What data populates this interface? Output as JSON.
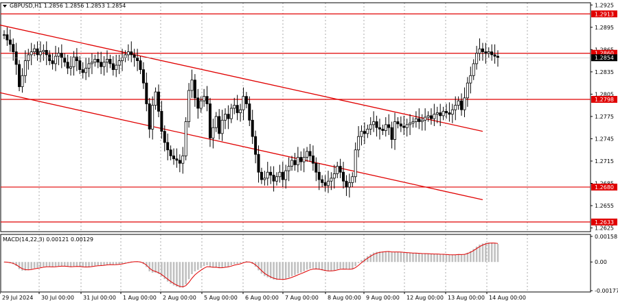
{
  "header": {
    "symbol": "GBPUSD,H1",
    "ohlc": "1.2856 1.2856 1.2853 1.2854"
  },
  "chart_data": {
    "type": "candlestick",
    "price_axis": {
      "range": [
        1.262,
        1.2928
      ],
      "ticks": [
        "1.2925",
        "1.2895",
        "1.2865",
        "1.2835",
        "1.2805",
        "1.2775",
        "1.2745",
        "1.2715",
        "1.2685",
        "1.2655",
        "1.2625"
      ]
    },
    "levels": [
      {
        "label": "1.2913",
        "value": 1.2913
      },
      {
        "label": "1.2860",
        "value": 1.286
      },
      {
        "label": "1.2798",
        "value": 1.2798
      },
      {
        "label": "1.2680",
        "value": 1.268
      },
      {
        "label": "1.2633",
        "value": 1.2633
      }
    ],
    "current_bid": {
      "label": "1.2854",
      "value": 1.2854
    },
    "channel_lines": [
      {
        "from": [
          0,
          1.2898
        ],
        "to": [
          158,
          1.2755
        ]
      },
      {
        "from": [
          0,
          1.2807
        ],
        "to": [
          158,
          1.2663
        ]
      }
    ],
    "x_labels": [
      "29 Jul 2024",
      "30 Jul 00:00",
      "31 Jul 00:00",
      "1 Aug 00:00",
      "2 Aug 00:00",
      "5 Aug 00:00",
      "6 Aug 00:00",
      "7 Aug 00:00",
      "8 Aug 00:00",
      "9 Aug 00:00",
      "12 Aug 00:00",
      "13 Aug 00:00",
      "14 Aug 00:00"
    ],
    "closes": [
      1.2885,
      1.2878,
      1.2872,
      1.2862,
      1.2845,
      1.2815,
      1.283,
      1.285,
      1.2858,
      1.2862,
      1.2866,
      1.2858,
      1.2862,
      1.2864,
      1.2858,
      1.285,
      1.2846,
      1.2856,
      1.286,
      1.2854,
      1.2848,
      1.284,
      1.2842,
      1.2855,
      1.285,
      1.2838,
      1.2834,
      1.284,
      1.2846,
      1.2848,
      1.2852,
      1.2848,
      1.2842,
      1.2848,
      1.2852,
      1.2846,
      1.2838,
      1.2844,
      1.285,
      1.2854,
      1.2858,
      1.2862,
      1.2858,
      1.2854,
      1.285,
      1.2838,
      1.282,
      1.2792,
      1.2758,
      1.279,
      1.2808,
      1.2782,
      1.2755,
      1.274,
      1.273,
      1.2722,
      1.2718,
      1.2716,
      1.2712,
      1.2722,
      1.2768,
      1.281,
      1.2824,
      1.28,
      1.2786,
      1.2796,
      1.2802,
      1.2792,
      1.2746,
      1.276,
      1.2775,
      1.2752,
      1.277,
      1.2778,
      1.2772,
      1.2786,
      1.279,
      1.278,
      1.2784,
      1.2802,
      1.2792,
      1.277,
      1.2748,
      1.2724,
      1.27,
      1.269,
      1.2692,
      1.27,
      1.2696,
      1.2688,
      1.2694,
      1.27,
      1.269,
      1.2702,
      1.2708,
      1.2716,
      1.271,
      1.272,
      1.2714,
      1.272,
      1.2728,
      1.2722,
      1.2712,
      1.27,
      1.269,
      1.2686,
      1.2682,
      1.2688,
      1.2692,
      1.2698,
      1.2708,
      1.27,
      1.2688,
      1.268,
      1.2686,
      1.2694,
      1.273,
      1.2748,
      1.2755,
      1.2752,
      1.2758,
      1.2764,
      1.2768,
      1.276,
      1.2758,
      1.2756,
      1.2764,
      1.276,
      1.2744,
      1.2768,
      1.2765,
      1.2762,
      1.276,
      1.2764,
      1.2766,
      1.2768,
      1.2772,
      1.2768,
      1.277,
      1.2774,
      1.2776,
      1.2772,
      1.2778,
      1.278,
      1.2776,
      1.2782,
      1.278,
      1.2778,
      1.2784,
      1.279,
      1.2796,
      1.2784,
      1.28,
      1.282,
      1.283,
      1.2846,
      1.286,
      1.2866,
      1.2862,
      1.286,
      1.2862,
      1.2858,
      1.2856,
      1.2854
    ],
    "macd": {
      "label": "MACD(14,22,3) 0.00121 0.00129",
      "axis_ticks": [
        "0.00158",
        "0.00",
        "-0.00177"
      ],
      "range": [
        -0.00185,
        0.0017
      ]
    }
  }
}
